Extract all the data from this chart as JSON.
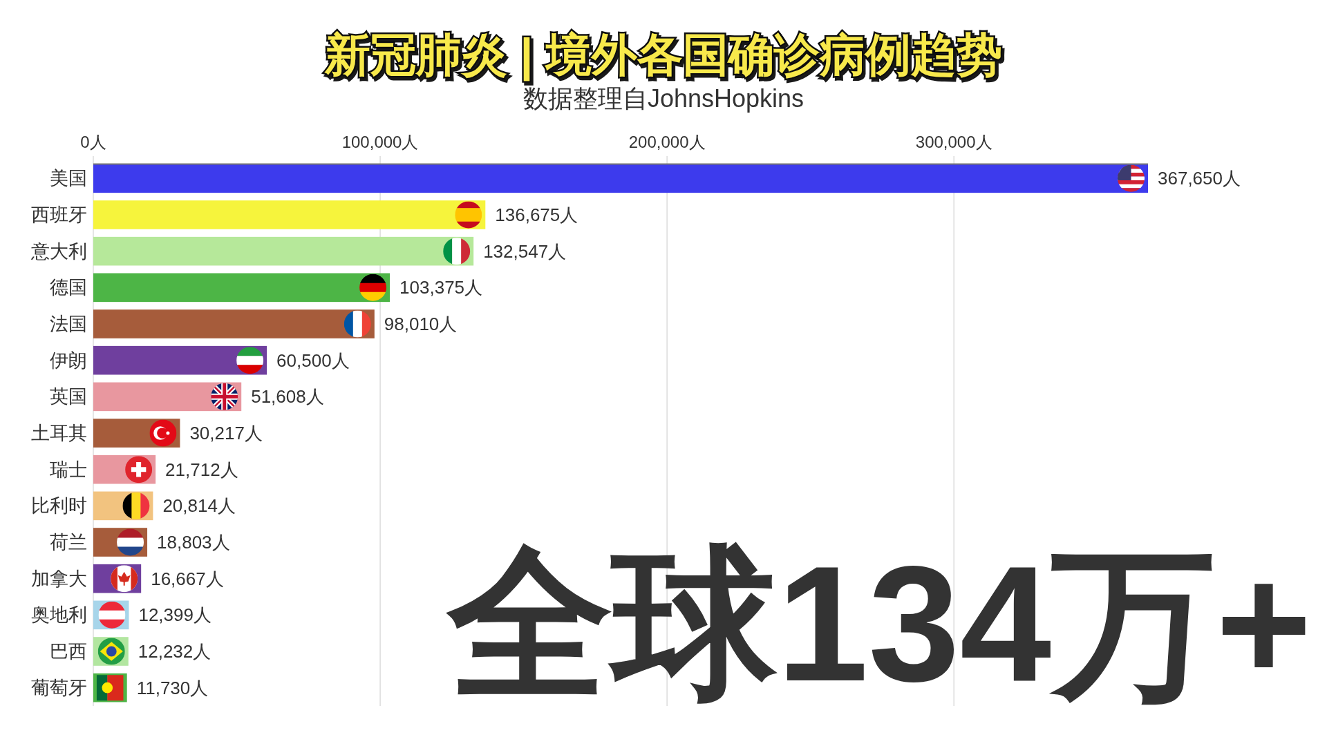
{
  "chart_data": {
    "type": "bar",
    "orientation": "horizontal",
    "title": "新冠肺炎 | 境外各国确诊病例趋势",
    "subtitle": "数据整理自JohnsHopkins",
    "categories": [
      "美国",
      "西班牙",
      "意大利",
      "德国",
      "法国",
      "伊朗",
      "英国",
      "土耳其",
      "瑞士",
      "比利时",
      "荷兰",
      "加拿大",
      "奥地利",
      "巴西",
      "葡萄牙"
    ],
    "values": [
      367650,
      136675,
      132547,
      103375,
      98010,
      60500,
      51608,
      30217,
      21712,
      20814,
      18803,
      16667,
      12399,
      12232,
      11730
    ],
    "colors": [
      "#3d3bed",
      "#f6f43c",
      "#b6e89a",
      "#4db546",
      "#a65c3b",
      "#6f3f9e",
      "#e8979f",
      "#a65c3b",
      "#e8979f",
      "#f2c37f",
      "#a65c3b",
      "#6f3f9e",
      "#a7d5ea",
      "#b2e6a0",
      "#4db546"
    ],
    "value_labels": [
      "367,650人",
      "136,675人",
      "132,547人",
      "103,375人",
      "98,010人",
      "60,500人",
      "51,608人",
      "30,217人",
      "21,712人",
      "20,814人",
      "18,803人",
      "16,667人",
      "12,399人",
      "12,232人",
      "11,730人"
    ],
    "xlim": [
      0,
      367650
    ],
    "xticks": [
      {
        "value": 0,
        "label": "0人"
      },
      {
        "value": 100000,
        "label": "100,000人"
      },
      {
        "value": 200000,
        "label": "200,000人"
      },
      {
        "value": 300000,
        "label": "300,000人"
      }
    ],
    "grid": "x",
    "annotations": [
      "全球134万+"
    ]
  }
}
